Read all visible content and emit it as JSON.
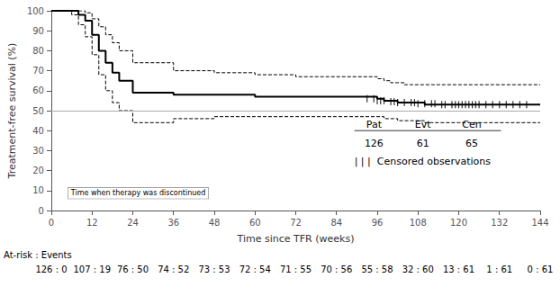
{
  "chart_data": {
    "type": "line",
    "xlabel": "Time since TFR (weeks)",
    "ylabel": "Treatment-free survival (%)",
    "xlim": [
      0,
      144
    ],
    "ylim": [
      0,
      100
    ],
    "xticks": [
      0,
      12,
      24,
      36,
      48,
      60,
      72,
      84,
      96,
      108,
      120,
      132,
      144
    ],
    "yticks": [
      0,
      10,
      20,
      30,
      40,
      50,
      60,
      70,
      80,
      90,
      100
    ],
    "grid": false,
    "reference_line": 50,
    "series": [
      {
        "type": "step",
        "line_style": "solid",
        "color": "#000000",
        "x": [
          0,
          6,
          8,
          10,
          12,
          14,
          16,
          18,
          20,
          24,
          36,
          48,
          60,
          72,
          84,
          96,
          98,
          100,
          102,
          104,
          106,
          108,
          110,
          112,
          114,
          116,
          118,
          120,
          122,
          124,
          126,
          128,
          130,
          132,
          134,
          144
        ],
        "values": [
          100,
          100,
          98,
          95,
          88,
          80,
          74,
          69,
          65,
          59,
          58,
          58,
          57,
          57,
          57,
          56,
          55,
          55,
          54,
          54,
          54,
          54,
          53,
          53,
          53,
          53,
          53,
          53,
          53,
          53,
          53,
          53,
          53,
          53,
          53,
          53
        ]
      },
      {
        "type": "step",
        "line_style": "dashed",
        "color": "#000000",
        "x": [
          0,
          6,
          8,
          10,
          12,
          14,
          16,
          18,
          20,
          24,
          36,
          48,
          60,
          72,
          84,
          96,
          98,
          100,
          102,
          104,
          106,
          108,
          110,
          112,
          114,
          116,
          118,
          120,
          122,
          124,
          126,
          128,
          130,
          132,
          134,
          144
        ],
        "values": [
          100,
          100,
          100,
          99,
          96,
          92,
          88,
          84,
          80,
          74,
          70,
          69,
          68,
          67,
          67,
          66,
          65,
          64,
          64,
          63,
          63,
          63,
          63,
          63,
          63,
          63,
          63,
          63,
          63,
          63,
          63,
          63,
          63,
          63,
          63,
          63
        ]
      },
      {
        "type": "step",
        "line_style": "dashed",
        "color": "#000000",
        "x": [
          0,
          6,
          8,
          10,
          12,
          14,
          16,
          18,
          20,
          24,
          36,
          48,
          60,
          72,
          84,
          96,
          98,
          100,
          102,
          104,
          106,
          108,
          110,
          112,
          114,
          116,
          118,
          120,
          122,
          124,
          126,
          128,
          130,
          132,
          134,
          144
        ],
        "values": [
          100,
          98,
          93,
          87,
          78,
          68,
          60,
          54,
          50,
          44,
          46,
          47,
          47,
          47,
          47,
          47,
          46,
          46,
          45,
          45,
          45,
          45,
          44,
          44,
          44,
          44,
          44,
          44,
          44,
          44,
          44,
          44,
          44,
          44,
          44,
          44
        ]
      },
      {
        "type": "scatter",
        "marker": "tick",
        "color": "#000000",
        "x": [
          93,
          95,
          96,
          97,
          98,
          100,
          101,
          102,
          104,
          106,
          107,
          108,
          110,
          112,
          113,
          115,
          116,
          118,
          119,
          120,
          121,
          122,
          123,
          124,
          125,
          126,
          128,
          130,
          132,
          134,
          136,
          138,
          140
        ],
        "values": [
          56,
          56,
          55,
          55,
          55,
          54.5,
          54.5,
          54,
          54,
          54,
          54,
          53.5,
          53.5,
          53.5,
          53.5,
          53,
          53,
          53,
          53,
          53,
          53,
          53,
          53,
          53,
          53,
          53,
          53,
          53,
          53,
          53,
          53,
          53,
          53
        ]
      }
    ],
    "annotations": [
      {
        "text": "Time when therapy was discontinued",
        "x": 5,
        "y": 6
      }
    ],
    "legend_table": {
      "headers": [
        "Pat",
        "Evt",
        "Cen"
      ],
      "values": [
        126,
        61,
        65
      ],
      "censored_text": "| | |  Censored observations"
    },
    "at_risk": {
      "label": "At-risk : Events",
      "x": [
        0,
        12,
        24,
        36,
        48,
        60,
        72,
        84,
        96,
        108,
        120,
        132,
        144
      ],
      "labels": [
        "126 : 0",
        "107 : 19",
        "76 : 50",
        "74 : 52",
        "73 : 53",
        "72 : 54",
        "71 : 55",
        "70 : 56",
        "55 : 58",
        "32 : 60",
        "13 : 61",
        "1 : 61",
        "0 : 61"
      ]
    }
  }
}
